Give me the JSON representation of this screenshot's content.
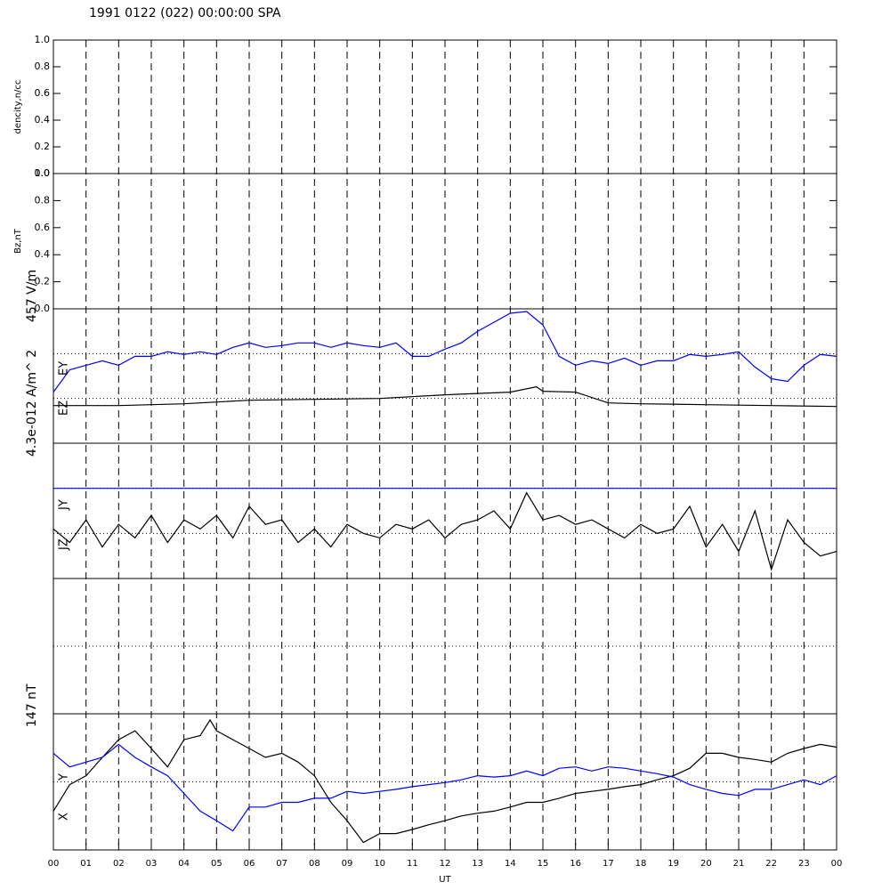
{
  "title": "1991 0122 (022) 00:00:00 SPA",
  "x_label": "UT",
  "xlim": [
    0,
    24
  ],
  "xticks": [
    {
      "value": 0,
      "label": "00"
    },
    {
      "value": 1,
      "label": "01"
    },
    {
      "value": 2,
      "label": "02"
    },
    {
      "value": 3,
      "label": "03"
    },
    {
      "value": 4,
      "label": "04"
    },
    {
      "value": 5,
      "label": "05"
    },
    {
      "value": 6,
      "label": "06"
    },
    {
      "value": 7,
      "label": "07"
    },
    {
      "value": 8,
      "label": "08"
    },
    {
      "value": 9,
      "label": "09"
    },
    10,
    11,
    12,
    13,
    14,
    15,
    16,
    17,
    18,
    19,
    20,
    21,
    22,
    23,
    {
      "value": 24,
      "label": "00"
    }
  ],
  "grid": true,
  "chart_data": [
    {
      "type": "line",
      "ylabel": "dencity,n/cc",
      "ylim": [
        0,
        1
      ],
      "yticks": [
        {
          "value": 0,
          "label": "0.0"
        },
        {
          "value": 0.2,
          "label": "0.2"
        },
        {
          "value": 0.4,
          "label": "0.4"
        },
        {
          "value": 0.6,
          "label": "0.6"
        },
        {
          "value": 0.8,
          "label": "0.8"
        },
        {
          "value": 1,
          "label": "1.0"
        }
      ]
    },
    {
      "type": "line",
      "ylabel": "Bz,nT",
      "ylim": [
        0,
        1
      ],
      "yticks": [
        {
          "value": 0,
          "label": "0.0"
        },
        {
          "value": 0.2,
          "label": "0.2"
        },
        {
          "value": 0.4,
          "label": "0.4"
        },
        {
          "value": 0.6,
          "label": "0.6"
        },
        {
          "value": 0.8,
          "label": "0.8"
        },
        {
          "value": 1,
          "label": "1.0"
        }
      ]
    },
    {
      "type": "line",
      "ylabel": "457 V/m",
      "ylim": [
        -1,
        2
      ],
      "hlines": [
        0,
        1
      ],
      "series": [
        {
          "name": "EZ",
          "color": "#0000ff",
          "x": [
            0,
            0.5,
            1,
            1.5,
            2,
            2.5,
            3,
            3.5,
            4,
            4.5,
            5,
            5.5,
            6,
            6.5,
            7,
            7.5,
            8,
            8.5,
            9,
            9.5,
            10,
            10.5,
            11,
            11.5,
            12,
            12.5,
            13,
            13.5,
            14,
            14.5,
            15,
            15.5,
            16,
            16.5,
            17,
            17.5,
            18,
            18.5,
            19,
            19.5,
            20,
            20.5,
            21,
            21.5,
            22,
            22.5,
            23,
            23.5,
            24
          ],
          "values": [
            0.14,
            0.64,
            0.74,
            0.84,
            0.74,
            0.94,
            0.94,
            1.04,
            0.98,
            1.04,
            0.98,
            1.14,
            1.24,
            1.14,
            1.18,
            1.24,
            1.24,
            1.14,
            1.24,
            1.18,
            1.14,
            1.24,
            0.94,
            0.94,
            1.1,
            1.24,
            1.5,
            1.7,
            1.9,
            1.94,
            1.64,
            0.94,
            0.74,
            0.84,
            0.78,
            0.9,
            0.74,
            0.84,
            0.84,
            0.98,
            0.94,
            0.98,
            1.04,
            0.7,
            0.44,
            0.38,
            0.74,
            0.98,
            0.94
          ]
        },
        {
          "name": "EY",
          "color": "#000000",
          "x": [
            0,
            2,
            4,
            6,
            8,
            10,
            12,
            14,
            14.8,
            15,
            16,
            17,
            18,
            20,
            22,
            24
          ],
          "values": [
            -0.16,
            -0.16,
            -0.12,
            -0.04,
            -0.02,
            0,
            0.08,
            0.14,
            0.26,
            0.16,
            0.14,
            -0.1,
            -0.12,
            -0.14,
            -0.16,
            -0.18
          ]
        }
      ]
    },
    {
      "type": "line",
      "ylabel": "4.3e-012 A/m^ 2",
      "ylim": [
        -1,
        2
      ],
      "hlines": [
        0,
        1
      ],
      "series": [
        {
          "name": "JZ",
          "color": "#0000ff",
          "x": [
            0,
            24
          ],
          "values": [
            1,
            1
          ]
        },
        {
          "name": "JY",
          "color": "#000000",
          "x": [
            0,
            0.5,
            1,
            1.5,
            2,
            2.5,
            3,
            3.5,
            4,
            4.5,
            5,
            5.5,
            6,
            6.5,
            7,
            7.5,
            8,
            8.5,
            9,
            9.5,
            10,
            10.5,
            11,
            11.5,
            12,
            12.5,
            13,
            13.5,
            14,
            14.5,
            15,
            15.5,
            16,
            16.5,
            17,
            17.5,
            18,
            18.5,
            19,
            19.5,
            20,
            20.5,
            21,
            21.5,
            22,
            22.5,
            23,
            23.5,
            24
          ],
          "values": [
            0.1,
            -0.2,
            0.3,
            -0.3,
            0.2,
            -0.1,
            0.4,
            -0.2,
            0.3,
            0.1,
            0.4,
            -0.1,
            0.6,
            0.2,
            0.3,
            -0.2,
            0.1,
            -0.3,
            0.2,
            0.0,
            -0.1,
            0.2,
            0.1,
            0.3,
            -0.1,
            0.2,
            0.3,
            0.5,
            0.1,
            0.9,
            0.3,
            0.4,
            0.2,
            0.3,
            0.1,
            -0.1,
            0.2,
            0.0,
            0.1,
            0.6,
            -0.3,
            0.2,
            -0.4,
            0.5,
            -0.8,
            0.3,
            -0.2,
            -0.5,
            -0.4
          ]
        }
      ]
    },
    {
      "type": "line",
      "ylim": [
        -1,
        1
      ],
      "hlines": [
        0
      ]
    },
    {
      "type": "line",
      "ylabel": "147 nT",
      "ylim": [
        -1,
        1
      ],
      "hlines": [
        0
      ],
      "series": [
        {
          "name": "X",
          "color": "#000000",
          "x": [
            0,
            0.5,
            1,
            1.5,
            2,
            2.5,
            3,
            3.5,
            4,
            4.5,
            4.8,
            5,
            5.5,
            6,
            6.5,
            7,
            7.5,
            8,
            8.5,
            9,
            9.5,
            10,
            10.5,
            11,
            11.5,
            12,
            12.5,
            13,
            13.5,
            14,
            14.5,
            15,
            15.5,
            16,
            16.5,
            17,
            17.5,
            18,
            18.5,
            19,
            19.5,
            20,
            20.5,
            21,
            21.5,
            22,
            22.5,
            23,
            23.5,
            24
          ],
          "values": [
            -0.43,
            -0.04,
            0.09,
            0.36,
            0.62,
            0.75,
            0.49,
            0.22,
            0.62,
            0.68,
            0.91,
            0.75,
            0.62,
            0.49,
            0.36,
            0.42,
            0.29,
            0.09,
            -0.3,
            -0.57,
            -0.89,
            -0.76,
            -0.76,
            -0.7,
            -0.63,
            -0.57,
            -0.5,
            -0.46,
            -0.43,
            -0.37,
            -0.3,
            -0.3,
            -0.24,
            -0.17,
            -0.14,
            -0.11,
            -0.07,
            -0.04,
            0.03,
            0.09,
            0.2,
            0.42,
            0.42,
            0.36,
            0.33,
            0.29,
            0.42,
            0.49,
            0.55,
            0.51
          ]
        },
        {
          "name": "Y",
          "color": "#0000ff",
          "x": [
            0,
            0.5,
            1,
            1.5,
            2,
            2.5,
            3,
            3.5,
            4,
            4.5,
            5,
            5.5,
            6,
            6.5,
            7,
            7.5,
            8,
            8.5,
            9,
            9.5,
            10,
            10.5,
            11,
            11.5,
            12,
            12.5,
            13,
            13.5,
            14,
            14.5,
            15,
            15.5,
            16,
            16.5,
            17,
            17.5,
            18,
            18.5,
            19,
            19.5,
            20,
            20.5,
            21,
            21.5,
            22,
            22.5,
            23,
            23.5,
            24
          ],
          "values": [
            0.42,
            0.22,
            0.29,
            0.36,
            0.55,
            0.36,
            0.22,
            0.09,
            -0.17,
            -0.43,
            -0.57,
            -0.72,
            -0.37,
            -0.37,
            -0.3,
            -0.3,
            -0.24,
            -0.24,
            -0.14,
            -0.17,
            -0.14,
            -0.11,
            -0.07,
            -0.04,
            -0.01,
            0.03,
            0.09,
            0.07,
            0.09,
            0.16,
            0.09,
            0.2,
            0.22,
            0.16,
            0.22,
            0.2,
            0.16,
            0.12,
            0.07,
            -0.04,
            -0.11,
            -0.17,
            -0.2,
            -0.11,
            -0.11,
            -0.04,
            0.03,
            -0.04,
            0.09
          ]
        }
      ]
    }
  ]
}
